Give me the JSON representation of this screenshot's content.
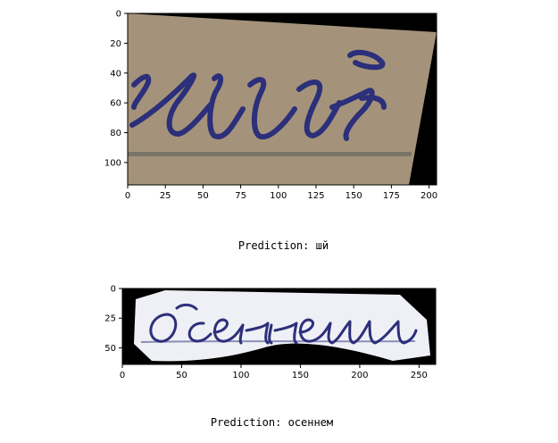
{
  "panels": [
    {
      "prediction_label": "Prediction:",
      "prediction": "шй",
      "x_ticks": [
        "0",
        "25",
        "50",
        "75",
        "100",
        "125",
        "150",
        "175",
        "200"
      ],
      "y_ticks": [
        "0",
        "20",
        "40",
        "60",
        "80",
        "100"
      ],
      "x_range": [
        0,
        205
      ],
      "y_range": [
        0,
        115
      ]
    },
    {
      "prediction_label": "Prediction:",
      "prediction": "осеннем",
      "x_ticks": [
        "0",
        "50",
        "100",
        "150",
        "200",
        "250"
      ],
      "y_ticks": [
        "0",
        "25",
        "50"
      ],
      "x_range": [
        0,
        264
      ],
      "y_range": [
        0,
        64
      ]
    }
  ],
  "colors": {
    "paper_1": "#a4937a",
    "paper_2": "#eef0f6",
    "ink": "#2c2f7a",
    "background": "#000000"
  }
}
